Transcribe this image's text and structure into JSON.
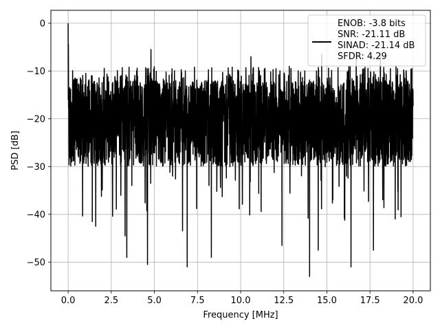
{
  "chart_data": {
    "type": "line",
    "title": "",
    "xlabel": "Frequency [MHz]",
    "ylabel": "PSD [dB]",
    "xlim": [
      -1.0,
      21.0
    ],
    "ylim": [
      -56.0,
      2.7
    ],
    "xticks": [
      0.0,
      2.5,
      5.0,
      7.5,
      10.0,
      12.5,
      15.0,
      17.5,
      20.0
    ],
    "xtick_labels": [
      "0.0",
      "2.5",
      "5.0",
      "7.5",
      "10.0",
      "12.5",
      "15.0",
      "17.5",
      "20.0"
    ],
    "yticks": [
      0,
      -10,
      -20,
      -30,
      -40,
      -50
    ],
    "ytick_labels": [
      "0",
      "−10",
      "−20",
      "−30",
      "−40",
      "−50"
    ],
    "grid": true,
    "legend_position": "top-right",
    "series": [
      {
        "color": "#000000",
        "x_range": [
          0.0,
          20.0
        ],
        "peak": {
          "x": 0.0,
          "y": 0.0
        },
        "noise_floor": {
          "median": -20,
          "typical_low": -30,
          "typical_high": -12
        },
        "dips": [
          {
            "x": 1.4,
            "y": -41.5
          },
          {
            "x": 1.6,
            "y": -42.5
          },
          {
            "x": 3.3,
            "y": -44.5
          },
          {
            "x": 3.4,
            "y": -49.0
          },
          {
            "x": 4.6,
            "y": -50.5
          },
          {
            "x": 6.9,
            "y": -51.0
          },
          {
            "x": 8.3,
            "y": -49.0
          },
          {
            "x": 12.4,
            "y": -46.5
          },
          {
            "x": 14.0,
            "y": -53.0
          },
          {
            "x": 14.5,
            "y": -47.5
          },
          {
            "x": 16.4,
            "y": -51.0
          },
          {
            "x": 17.7,
            "y": -47.5
          },
          {
            "x": 19.3,
            "y": -40.5
          }
        ],
        "spikes": [
          {
            "x": 4.8,
            "y": -5.5
          },
          {
            "x": 10.6,
            "y": -7.0
          },
          {
            "x": 14.7,
            "y": -6.5
          },
          {
            "x": 16.7,
            "y": -6.0
          },
          {
            "x": 18.1,
            "y": -6.5
          }
        ]
      }
    ],
    "legend": {
      "entries": [
        "ENOB: -3.8 bits",
        "SNR: -21.11 dB",
        "SINAD: -21.14 dB",
        "SFDR: 4.29"
      ]
    }
  }
}
